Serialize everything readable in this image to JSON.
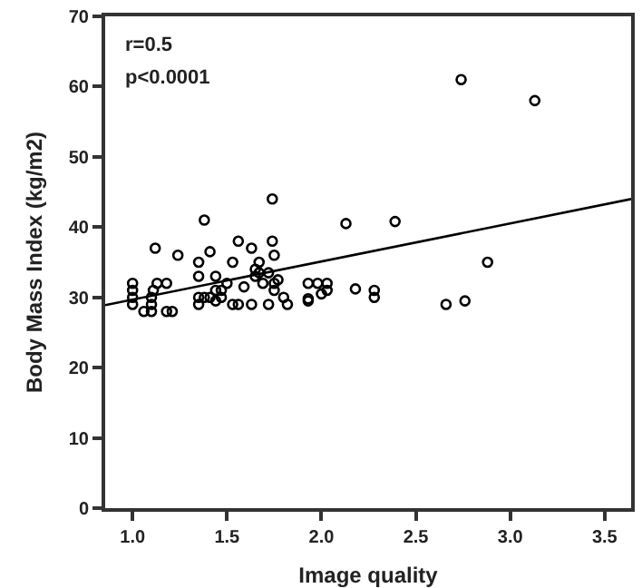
{
  "chart_data": {
    "type": "scatter",
    "xlabel": "Image quality",
    "ylabel": "Body Mass Index (kg/m2)",
    "xlim": [
      0.855,
      3.64
    ],
    "xticks": [
      {
        "value": 1,
        "label": "1.0"
      },
      1.5,
      {
        "value": 2,
        "label": "2.0"
      },
      2.5,
      {
        "value": 3,
        "label": "3.0"
      },
      3.5
    ],
    "ylim": [
      0,
      70
    ],
    "yticks": [
      0,
      10,
      20,
      30,
      40,
      50,
      60,
      70
    ],
    "grid": false,
    "marker": "circle",
    "annotations": [
      "r=0.5",
      "p<0.0001"
    ],
    "series": [
      {
        "color": "#000000",
        "x": [
          1.0,
          1.0,
          1.0,
          1.0,
          1.06,
          1.1,
          1.1,
          1.1,
          1.11,
          1.12,
          1.13,
          1.18,
          1.18,
          1.21,
          1.24,
          1.35,
          1.35,
          1.35,
          1.35,
          1.38,
          1.38,
          1.41,
          1.41,
          1.44,
          1.44,
          1.44,
          1.47,
          1.47,
          1.5,
          1.53,
          1.53,
          1.56,
          1.56,
          1.59,
          1.63,
          1.63,
          1.65,
          1.65,
          1.67,
          1.67,
          1.69,
          1.72,
          1.72,
          1.74,
          1.74,
          1.75,
          1.75,
          1.75,
          1.77,
          1.8,
          1.82,
          1.93,
          1.93,
          1.93,
          1.98,
          2.0,
          2.03,
          2.03,
          2.13,
          2.18,
          2.28,
          2.28,
          2.39,
          2.66,
          2.74,
          2.76,
          2.88,
          3.13
        ],
        "values": [
          32,
          31,
          30,
          29,
          28,
          28,
          29,
          30,
          31,
          37,
          32,
          32,
          28,
          28,
          36,
          35,
          33,
          30,
          29,
          30,
          41,
          36.5,
          30,
          33,
          31,
          29.5,
          30,
          31,
          32,
          35,
          29,
          38,
          29,
          31.5,
          37,
          29,
          34,
          33,
          35,
          33.5,
          32,
          33.5,
          29,
          44,
          38,
          36,
          32,
          31,
          32.5,
          30,
          29,
          32,
          29.5,
          29.8,
          32,
          30.5,
          32,
          31,
          40.5,
          31.2,
          31,
          30,
          40.8,
          29,
          61,
          29.5,
          35,
          58
        ]
      },
      {
        "type": "line",
        "color": "#000000",
        "line_style": "solid",
        "marker": "none",
        "x": [
          0.855,
          3.64
        ],
        "values": [
          28.9,
          44
        ]
      }
    ]
  }
}
